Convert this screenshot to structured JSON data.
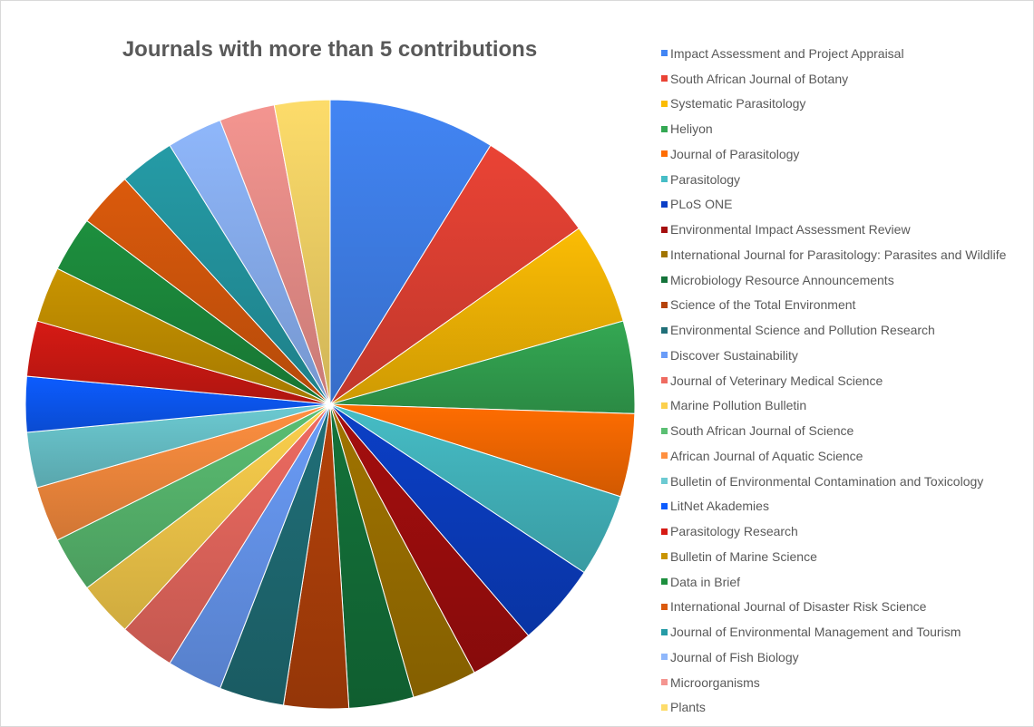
{
  "chart_data": {
    "type": "pie",
    "title": "Journals with more than 5 contributions",
    "legend_position": "right",
    "categories": [
      "Impact Assessment and Project Appraisal",
      "South African Journal of Botany",
      "Systematic Parasitology",
      "Heliyon",
      "Journal of Parasitology",
      "Parasitology",
      "PLoS ONE",
      "Environmental Impact Assessment Review",
      "International Journal for Parasitology: Parasites and Wildlife",
      "Microbiology Resource Announcements",
      "Science of the Total Environment",
      "Environmental Science and Pollution Research",
      "Discover Sustainability",
      "Journal of Veterinary Medical Science",
      "Marine Pollution Bulletin",
      "South African Journal of Science",
      "African Journal of Aquatic Science",
      "Bulletin of Environmental Contamination and Toxicology",
      "LitNet Akademies",
      "Parasitology Research",
      "Bulletin of Marine Science",
      "Data in Brief",
      "International Journal of Disaster Risk Science",
      "Journal of Environmental Management and Tourism",
      "Journal of Fish Biology",
      "Microorganisms",
      "Plants"
    ],
    "values": [
      18,
      13,
      11,
      10,
      9,
      9,
      9,
      7,
      7,
      7,
      7,
      7,
      6,
      6,
      6,
      6,
      6,
      6,
      6,
      6,
      6,
      6,
      6,
      6,
      6,
      6,
      6
    ],
    "colors": [
      "#4285f4",
      "#ea4335",
      "#fbbc04",
      "#34a853",
      "#ff6d01",
      "#46bdc6",
      "#0b3fc7",
      "#a50e0e",
      "#a17400",
      "#14733a",
      "#b5420a",
      "#206f78",
      "#6a9cf8",
      "#ef6b61",
      "#fcd04d",
      "#5bbf73",
      "#ff9040",
      "#6ccad2",
      "#0c5cff",
      "#d61a14",
      "#c99400",
      "#1d8f3e",
      "#db5a0c",
      "#259ba6",
      "#8fb7fb",
      "#f49590",
      "#fddc6a"
    ]
  }
}
